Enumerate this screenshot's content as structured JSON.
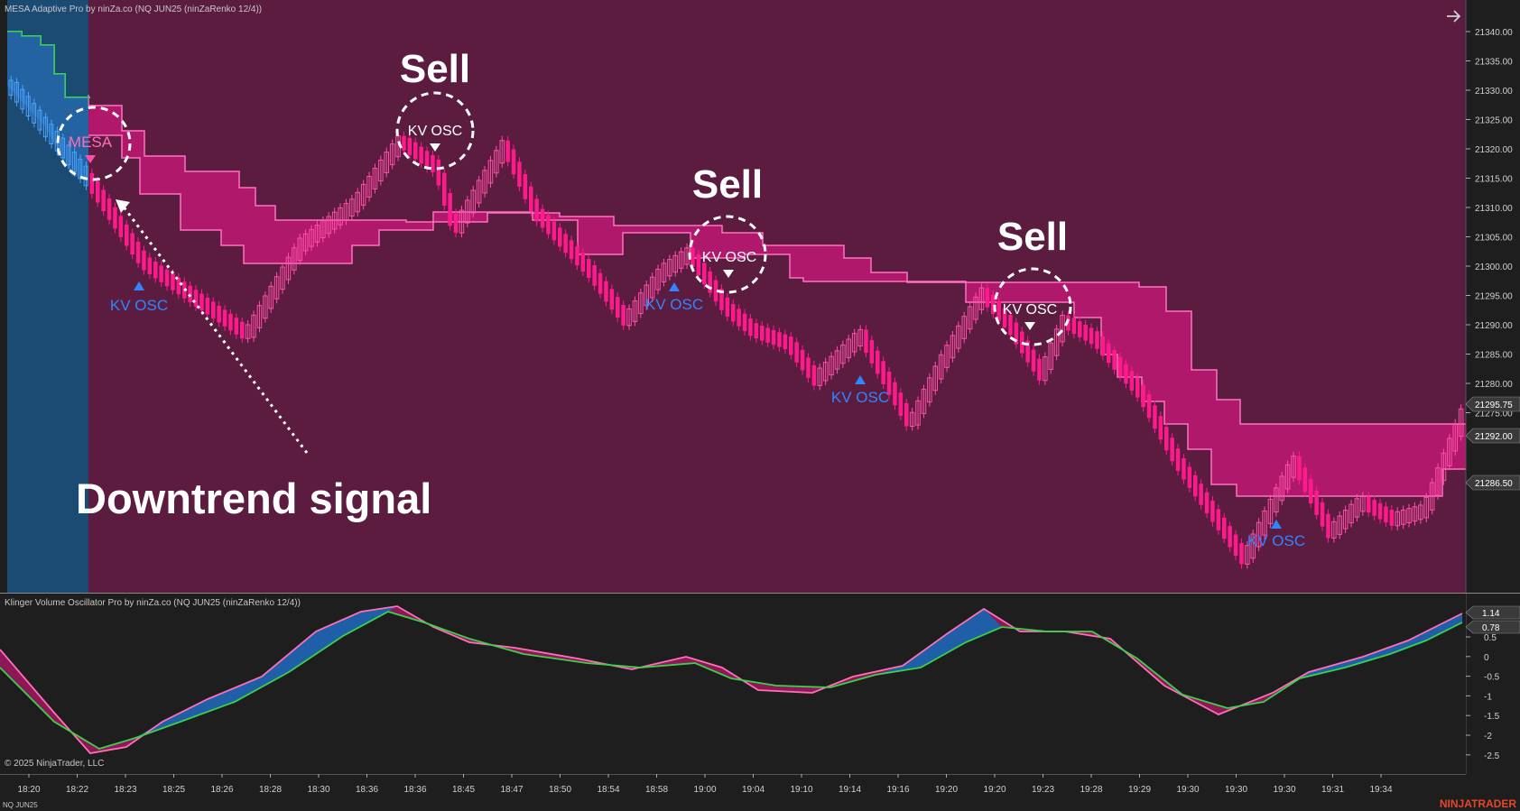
{
  "price_panel": {
    "title": "MESA Adaptive Pro by ninZa.co (NQ JUN25 (ninZaRenko 12/4))",
    "axis_ticks": [
      "21340.00",
      "21335.00",
      "21330.00",
      "21325.00",
      "21320.00",
      "21315.00",
      "21310.00",
      "21305.00",
      "21300.00",
      "21295.00",
      "21290.00",
      "21285.00",
      "21280.00",
      "21275.00"
    ],
    "price_tags": [
      {
        "value": "21295.75",
        "bg": "#3a3a3a"
      },
      {
        "value": "21292.00",
        "bg": "#3a3a3a"
      },
      {
        "value": "21286.50",
        "bg": "#3a3a3a"
      }
    ],
    "colors": {
      "background": "#5c1c40",
      "uptrend_zone": "#1b4a73",
      "cloud": "#b0196b",
      "cloud_edge": "#ff70c0",
      "bar_down": "#ff1a8c",
      "bar_up": "#ff4fa8",
      "ma_up": "#3bd14a",
      "signal_blue": "#2f86ff"
    }
  },
  "annotations": {
    "sell_label": "Sell",
    "downtrend_label": "Downtrend signal",
    "mesa_label": "MESA",
    "kv_osc_label": "KV OSC"
  },
  "oscillator_panel": {
    "title": "Klinger Volume Oscillator Pro by ninZa.co (NQ JUN25 (ninZaRenko 12/4))",
    "axis_ticks": [
      "0.5",
      "0",
      "-0.5",
      "-1",
      "-1.5",
      "-2",
      "-2.5"
    ],
    "value_tags": [
      {
        "value": "1.14",
        "bg": "#3a3a3a"
      },
      {
        "value": "0.78",
        "bg": "#3a3a3a"
      }
    ]
  },
  "time_axis": [
    "18:20",
    "18:22",
    "18:23",
    "18:25",
    "18:26",
    "18:28",
    "18:30",
    "18:36",
    "18:36",
    "18:45",
    "18:47",
    "18:50",
    "18:54",
    "18:58",
    "19:00",
    "19:04",
    "19:10",
    "19:14",
    "19:16",
    "19:20",
    "19:20",
    "19:23",
    "19:28",
    "19:29",
    "19:30",
    "19:30",
    "19:30",
    "19:31",
    "19:34"
  ],
  "footer": {
    "copyright": "© 2025 NinjaTrader, LLC",
    "instrument": "NQ JUN25",
    "brand": "NINJATRADER"
  },
  "icons": {
    "nav_arrow": "right-arrow-icon"
  }
}
